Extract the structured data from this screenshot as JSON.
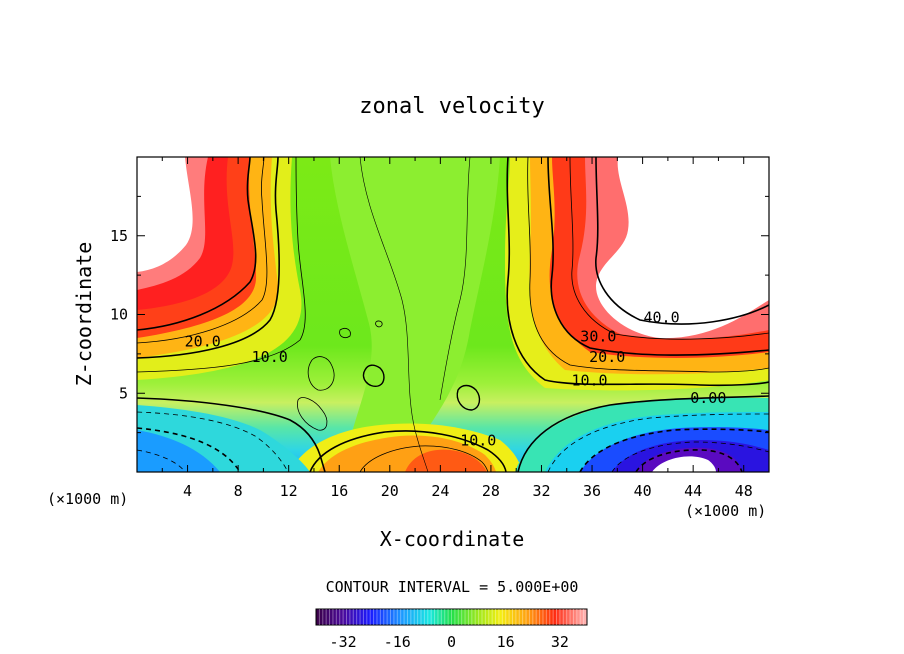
{
  "chart_data": {
    "type": "heatmap",
    "subtype": "filled-contour",
    "title": "zonal velocity",
    "xlabel": "X-coordinate",
    "ylabel": "Z-coordinate",
    "x_unit_left": "(×1000 m)",
    "x_unit_right": "(×1000 m)",
    "xlim": [
      0,
      50
    ],
    "ylim": [
      0,
      20
    ],
    "x_ticks": [
      4,
      8,
      12,
      16,
      20,
      24,
      28,
      32,
      36,
      40,
      44,
      48
    ],
    "x_tick_labels": [
      "4",
      "8",
      "12",
      "16",
      "20",
      "24",
      "28",
      "32",
      "36",
      "40",
      "44",
      "48"
    ],
    "y_ticks": [
      5,
      10,
      15
    ],
    "y_tick_labels": [
      "5",
      "10",
      "15"
    ],
    "contour_interval_text": "CONTOUR INTERVAL = 5.000E+00",
    "contour_labels": [
      {
        "text": "20.0",
        "x": 5.2,
        "z": 8.3
      },
      {
        "text": "10.0",
        "x": 10.5,
        "z": 7.3
      },
      {
        "text": "10.0",
        "x": 27.0,
        "z": 2.0
      },
      {
        "text": "30.0",
        "x": 36.5,
        "z": 8.6
      },
      {
        "text": "20.0",
        "x": 37.2,
        "z": 7.3
      },
      {
        "text": "10.0",
        "x": 35.8,
        "z": 5.8
      },
      {
        "text": "40.0",
        "x": 41.5,
        "z": 9.8
      },
      {
        "text": "0.00",
        "x": 45.2,
        "z": 4.7
      }
    ],
    "colorbar": {
      "range": [
        -40,
        40
      ],
      "ticks": [
        -32,
        -16,
        0,
        16,
        32
      ],
      "tick_labels": [
        "-32",
        "-16",
        "0",
        "16",
        "32"
      ]
    },
    "grid": false,
    "legend": "colorbar-bottom"
  }
}
